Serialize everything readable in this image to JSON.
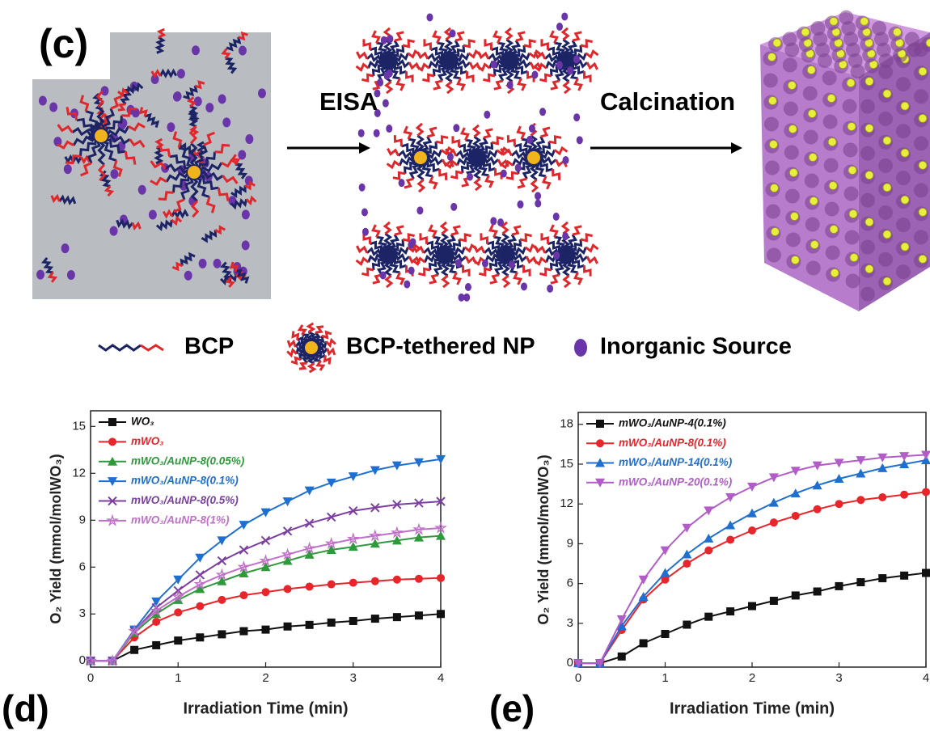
{
  "diagram": {
    "panel_label": "(c)",
    "steps": [
      "EISA",
      "Calcination"
    ],
    "legend": [
      "BCP",
      "BCP-tethered NP",
      "Inorganic Source"
    ]
  },
  "chart_data": [
    {
      "type": "line",
      "panel_label": "(d)",
      "x_label": "Irradiation Time (min)",
      "y_label": "O₂ Yield (mmol/molWO₃)",
      "x": [
        0,
        0.25,
        0.5,
        0.75,
        1,
        1.25,
        1.5,
        1.75,
        2,
        2.25,
        2.5,
        2.75,
        3,
        3.25,
        3.5,
        3.75,
        4
      ],
      "xlim": [
        0,
        4
      ],
      "xticks": [
        0,
        1,
        2,
        3,
        4
      ],
      "ylim": [
        -0.4,
        16
      ],
      "yticks": [
        0,
        3,
        6,
        9,
        12,
        15
      ],
      "grid": false,
      "legend": "upper left",
      "series": [
        {
          "name": "WO₃",
          "color": "#111111",
          "marker": "square",
          "values": [
            0,
            0,
            0.7,
            1.0,
            1.3,
            1.5,
            1.7,
            1.9,
            2.0,
            2.2,
            2.3,
            2.45,
            2.55,
            2.7,
            2.8,
            2.9,
            3.0
          ]
        },
        {
          "name": "mWO₃",
          "color": "#e8252a",
          "marker": "circle",
          "values": [
            0,
            0,
            1.5,
            2.5,
            3.1,
            3.5,
            3.9,
            4.2,
            4.4,
            4.6,
            4.75,
            4.9,
            5.0,
            5.1,
            5.2,
            5.25,
            5.3
          ]
        },
        {
          "name": "mWO₃/AuNP-8(0.05%)",
          "color": "#2f9a3c",
          "marker": "triangle-up",
          "values": [
            0,
            0,
            1.8,
            3.0,
            3.9,
            4.6,
            5.1,
            5.6,
            6.0,
            6.4,
            6.8,
            7.1,
            7.3,
            7.5,
            7.7,
            7.9,
            8.0
          ]
        },
        {
          "name": "mWO₃/AuNP-8(0.1%)",
          "color": "#1f6fd0",
          "marker": "triangle-down",
          "values": [
            0,
            0,
            2.0,
            3.8,
            5.2,
            6.6,
            7.7,
            8.7,
            9.5,
            10.2,
            10.9,
            11.4,
            11.8,
            12.2,
            12.5,
            12.7,
            12.9
          ]
        },
        {
          "name": "mWO₃/AuNP-8(0.5%)",
          "color": "#7b3fa0",
          "marker": "cross",
          "values": [
            0,
            0,
            1.9,
            3.4,
            4.5,
            5.5,
            6.4,
            7.1,
            7.7,
            8.3,
            8.8,
            9.2,
            9.6,
            9.8,
            10.0,
            10.1,
            10.2
          ]
        },
        {
          "name": "mWO₃/AuNP-8(1%)",
          "color": "#c070c8",
          "marker": "star",
          "values": [
            0,
            0,
            1.9,
            3.2,
            4.1,
            4.9,
            5.5,
            6.0,
            6.4,
            6.8,
            7.2,
            7.5,
            7.8,
            8.0,
            8.2,
            8.4,
            8.5
          ]
        }
      ]
    },
    {
      "type": "line",
      "panel_label": "(e)",
      "x_label": "Irradiation Time (min)",
      "y_label": "O₂ Yield (mmol/molWO₃)",
      "x": [
        0,
        0.25,
        0.5,
        0.75,
        1,
        1.25,
        1.5,
        1.75,
        2,
        2.25,
        2.5,
        2.75,
        3,
        3.25,
        3.5,
        3.75,
        4
      ],
      "xlim": [
        0,
        4
      ],
      "xticks": [
        0,
        1,
        2,
        3,
        4
      ],
      "ylim": [
        -0.3,
        18.9
      ],
      "yticks": [
        0,
        3,
        6,
        9,
        12,
        15,
        18
      ],
      "grid": false,
      "legend": "upper left",
      "series": [
        {
          "name": "mWO₃/AuNP-4(0.1%)",
          "color": "#111111",
          "marker": "square",
          "values": [
            0,
            0,
            0.5,
            1.5,
            2.2,
            2.9,
            3.5,
            3.9,
            4.3,
            4.7,
            5.1,
            5.4,
            5.8,
            6.1,
            6.4,
            6.6,
            6.8
          ]
        },
        {
          "name": "mWO₃/AuNP-8(0.1%)",
          "color": "#e8252a",
          "marker": "circle",
          "values": [
            0,
            0,
            2.5,
            4.8,
            6.3,
            7.5,
            8.5,
            9.3,
            10.0,
            10.6,
            11.1,
            11.6,
            12.0,
            12.3,
            12.5,
            12.7,
            12.9
          ]
        },
        {
          "name": "mWO₃/AuNP-14(0.1%)",
          "color": "#1f6fd0",
          "marker": "triangle-up",
          "values": [
            0,
            0,
            2.8,
            5.0,
            6.8,
            8.2,
            9.4,
            10.4,
            11.3,
            12.1,
            12.8,
            13.4,
            13.9,
            14.3,
            14.7,
            15.0,
            15.3
          ]
        },
        {
          "name": "mWO₃/AuNP-20(0.1%)",
          "color": "#b25cc8",
          "marker": "triangle-down",
          "values": [
            0,
            0,
            3.3,
            6.3,
            8.5,
            10.2,
            11.5,
            12.5,
            13.3,
            14.0,
            14.5,
            14.9,
            15.1,
            15.3,
            15.5,
            15.6,
            15.7
          ]
        }
      ]
    }
  ]
}
